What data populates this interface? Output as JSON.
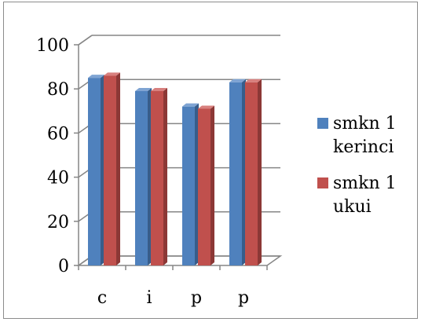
{
  "chart_data": {
    "type": "bar",
    "style": "3d-clustered-column",
    "categories": [
      "c",
      "i",
      "p",
      "p"
    ],
    "series": [
      {
        "name": "smkn 1 kerinci",
        "name_lines": [
          "smkn 1",
          "kerinci"
        ],
        "values": [
          85,
          79,
          72,
          83
        ],
        "color": "#4F81BD",
        "side_color": "#385D8A",
        "top_color": "#7FA4D3"
      },
      {
        "name": "smkn 1 ukui",
        "name_lines": [
          "smkn 1",
          "ukui"
        ],
        "values": [
          86,
          79,
          71,
          83
        ],
        "color": "#C0504D",
        "side_color": "#8C3836",
        "top_color": "#D8807E"
      }
    ],
    "yticks": [
      "0",
      "20",
      "40",
      "60",
      "80",
      "100"
    ],
    "ylim": [
      0,
      100
    ],
    "title": "",
    "xlabel": "",
    "ylabel": "",
    "grid": true,
    "legend_position": "right"
  }
}
